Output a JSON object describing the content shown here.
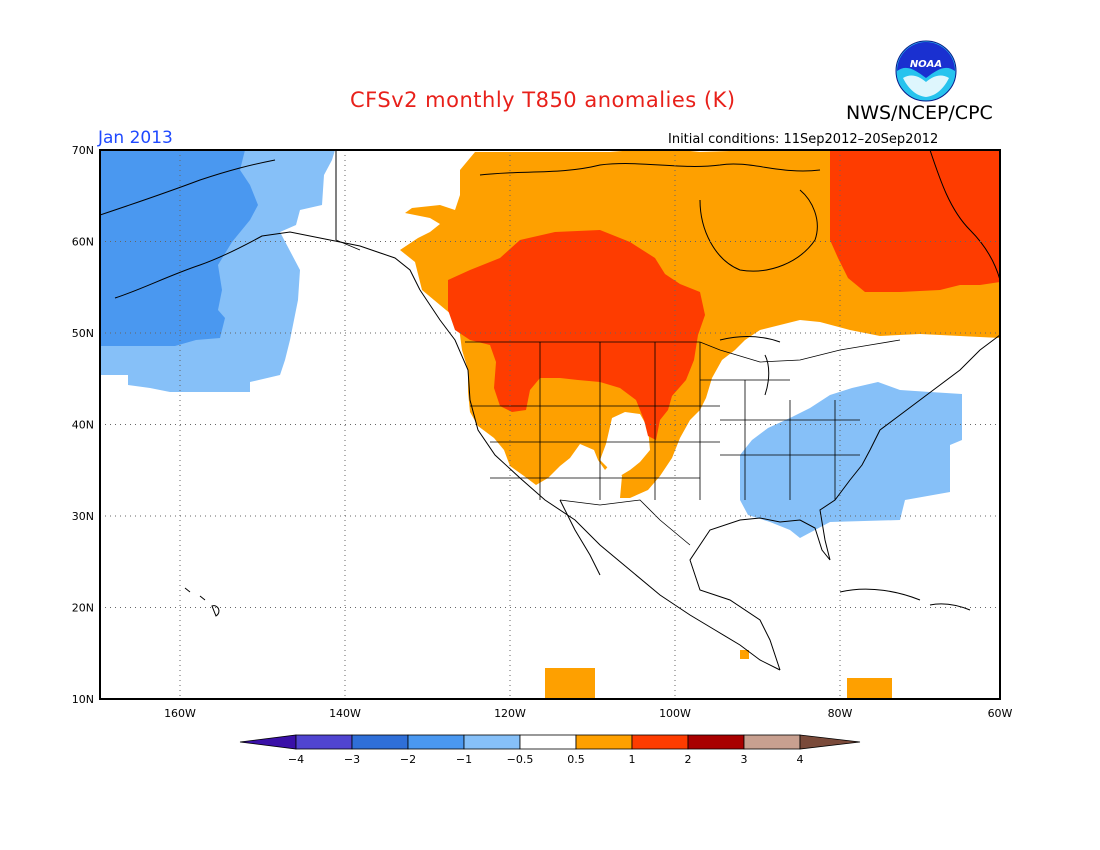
{
  "header": {
    "title": "CFSv2 monthly T850 anomalies (K)",
    "agency": "NWS/NCEP/CPC",
    "logo_text": "NOAA",
    "month": "Jan 2013",
    "initial_conditions": "Initial conditions: 11Sep2012–20Sep2012"
  },
  "map": {
    "type": "filled-contour anomaly map",
    "projection": "cylindrical lat-lon",
    "lon_range": [
      -172,
      -60
    ],
    "lat_range": [
      10,
      70
    ],
    "lat_labels": [
      "70N",
      "60N",
      "50N",
      "40N",
      "30N",
      "20N",
      "10N"
    ],
    "lon_labels": [
      "160W",
      "140W",
      "120W",
      "100W",
      "80W",
      "60W"
    ],
    "gridlines": "dotted"
  },
  "colorbar": {
    "tick_labels": [
      "−4",
      "−3",
      "−2",
      "−1",
      "−0.5",
      "0.5",
      "1",
      "2",
      "3",
      "4"
    ],
    "colors": [
      "#3a10a8",
      "#5044d0",
      "#2f6fd8",
      "#4a98f0",
      "#86c0f8",
      "#ffffff",
      "#fea000",
      "#fe3c00",
      "#a80000",
      "#c8a090",
      "#7a4a3a"
    ]
  },
  "colors": {
    "title_red": "#e8201a",
    "month_blue": "#1f49ff",
    "noaa_blue": "#1a30d0"
  }
}
